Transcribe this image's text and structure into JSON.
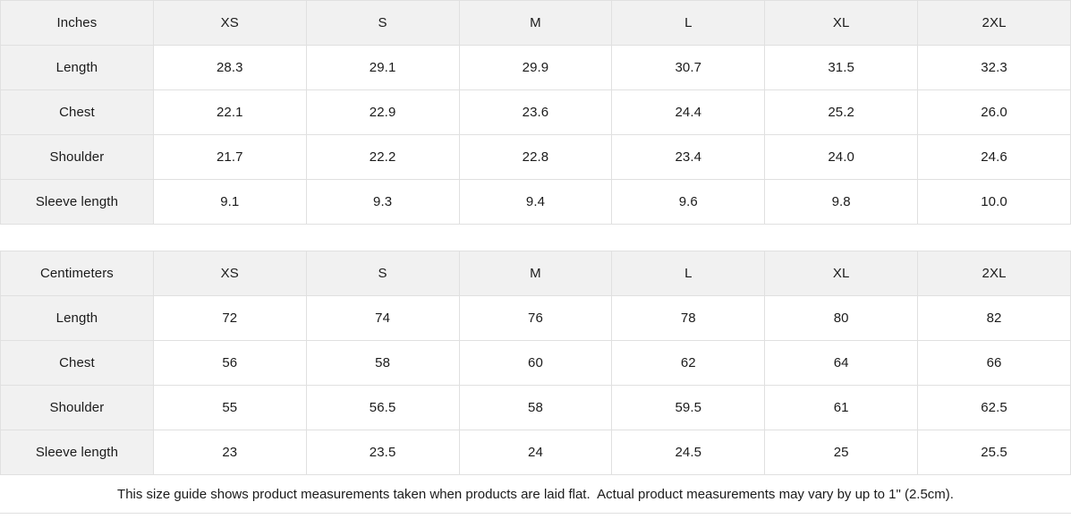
{
  "colors": {
    "header_bg": "#f1f1f1",
    "border": "#e0e0e0",
    "text": "#1b1b1b",
    "background": "#ffffff"
  },
  "size_guide": {
    "inches": {
      "unit_label": "Inches",
      "columns": [
        "XS",
        "S",
        "M",
        "L",
        "XL",
        "2XL"
      ],
      "rows": [
        {
          "label": "Length",
          "values": [
            "28.3",
            "29.1",
            "29.9",
            "30.7",
            "31.5",
            "32.3"
          ]
        },
        {
          "label": "Chest",
          "values": [
            "22.1",
            "22.9",
            "23.6",
            "24.4",
            "25.2",
            "26.0"
          ]
        },
        {
          "label": "Shoulder",
          "values": [
            "21.7",
            "22.2",
            "22.8",
            "23.4",
            "24.0",
            "24.6"
          ]
        },
        {
          "label": "Sleeve length",
          "values": [
            "9.1",
            "9.3",
            "9.4",
            "9.6",
            "9.8",
            "10.0"
          ]
        }
      ]
    },
    "centimeters": {
      "unit_label": "Centimeters",
      "columns": [
        "XS",
        "S",
        "M",
        "L",
        "XL",
        "2XL"
      ],
      "rows": [
        {
          "label": "Length",
          "values": [
            "72",
            "74",
            "76",
            "78",
            "80",
            "82"
          ]
        },
        {
          "label": "Chest",
          "values": [
            "56",
            "58",
            "60",
            "62",
            "64",
            "66"
          ]
        },
        {
          "label": "Shoulder",
          "values": [
            "55",
            "56.5",
            "58",
            "59.5",
            "61",
            "62.5"
          ]
        },
        {
          "label": "Sleeve length",
          "values": [
            "23",
            "23.5",
            "24",
            "24.5",
            "25",
            "25.5"
          ]
        }
      ]
    },
    "footnote": "This size guide shows product measurements taken when products are laid flat.  Actual product measurements may vary by up to 1\" (2.5cm)."
  }
}
